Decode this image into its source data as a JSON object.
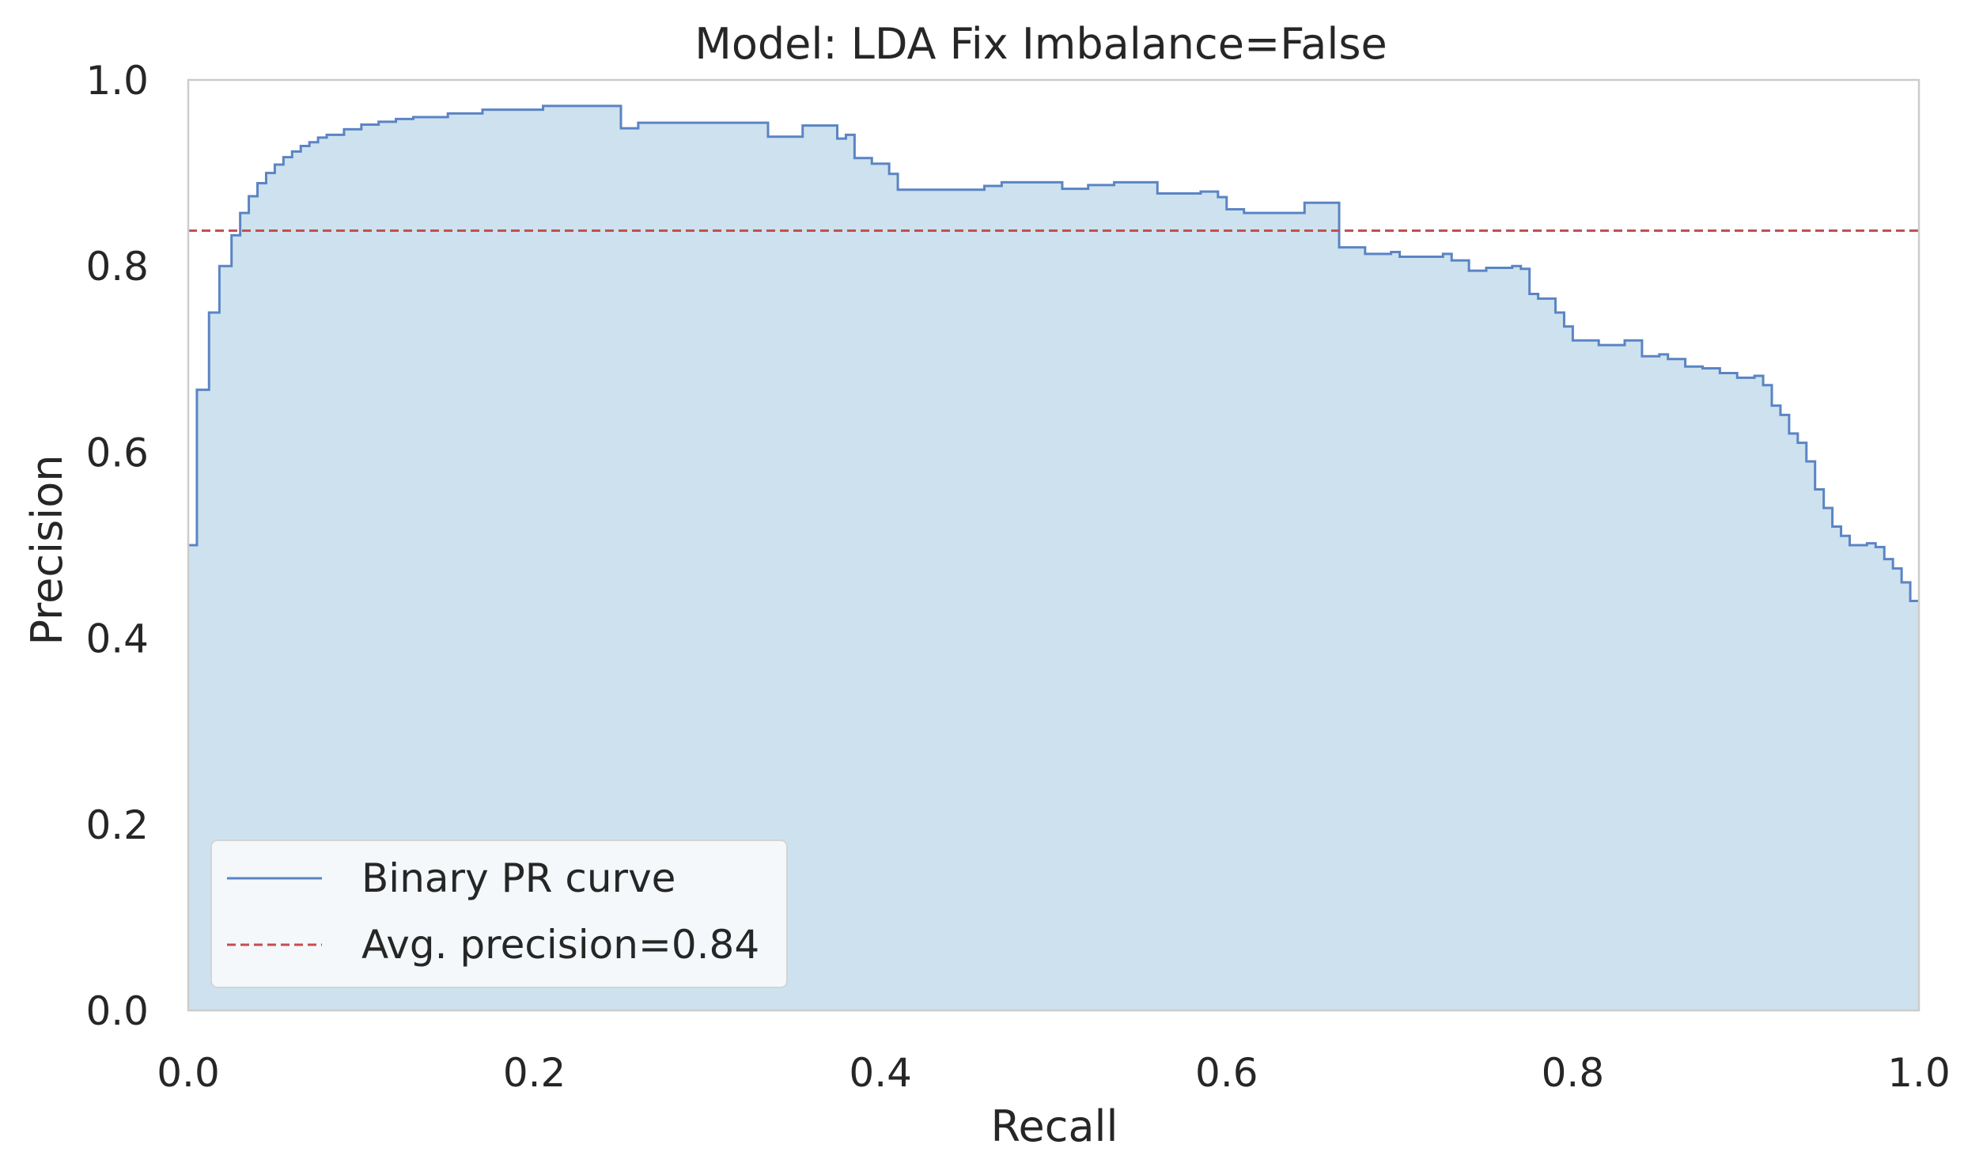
{
  "chart_data": {
    "type": "area",
    "title": "Model: LDA     Fix Imbalance=False",
    "xlabel": "Recall",
    "ylabel": "Precision",
    "xlim": [
      0.0,
      1.0
    ],
    "ylim": [
      0.0,
      1.0
    ],
    "xticks": [
      "0.0",
      "0.2",
      "0.4",
      "0.6",
      "0.8",
      "1.0"
    ],
    "yticks": [
      "0.0",
      "0.2",
      "0.4",
      "0.6",
      "0.8",
      "1.0"
    ],
    "grid": false,
    "legend_position": "lower-left",
    "colors": {
      "curve": "#5b84c4",
      "fill": "#cde2ee",
      "avg_line": "#c44e52",
      "spine": "#cccccc"
    },
    "series": [
      {
        "name": "Binary PR curve",
        "style": "step",
        "x": [
          0.0,
          0.005,
          0.012,
          0.018,
          0.025,
          0.03,
          0.035,
          0.04,
          0.045,
          0.05,
          0.055,
          0.06,
          0.065,
          0.07,
          0.075,
          0.08,
          0.09,
          0.1,
          0.11,
          0.12,
          0.13,
          0.15,
          0.17,
          0.205,
          0.25,
          0.26,
          0.335,
          0.355,
          0.375,
          0.38,
          0.385,
          0.395,
          0.405,
          0.41,
          0.46,
          0.47,
          0.505,
          0.52,
          0.535,
          0.56,
          0.585,
          0.595,
          0.6,
          0.61,
          0.645,
          0.665,
          0.68,
          0.695,
          0.7,
          0.725,
          0.73,
          0.74,
          0.75,
          0.765,
          0.77,
          0.775,
          0.78,
          0.79,
          0.795,
          0.8,
          0.815,
          0.83,
          0.84,
          0.85,
          0.855,
          0.865,
          0.875,
          0.885,
          0.895,
          0.905,
          0.91,
          0.915,
          0.92,
          0.925,
          0.93,
          0.935,
          0.94,
          0.945,
          0.95,
          0.955,
          0.96,
          0.97,
          0.975,
          0.98,
          0.985,
          0.99,
          0.995,
          1.0
        ],
        "y": [
          0.5,
          0.667,
          0.75,
          0.8,
          0.833,
          0.857,
          0.875,
          0.889,
          0.9,
          0.909,
          0.917,
          0.923,
          0.929,
          0.933,
          0.938,
          0.941,
          0.947,
          0.952,
          0.955,
          0.958,
          0.96,
          0.964,
          0.968,
          0.972,
          0.948,
          0.954,
          0.939,
          0.951,
          0.937,
          0.941,
          0.916,
          0.91,
          0.899,
          0.882,
          0.886,
          0.89,
          0.883,
          0.887,
          0.89,
          0.878,
          0.88,
          0.874,
          0.861,
          0.857,
          0.868,
          0.82,
          0.813,
          0.815,
          0.81,
          0.813,
          0.806,
          0.795,
          0.798,
          0.8,
          0.797,
          0.77,
          0.765,
          0.75,
          0.735,
          0.72,
          0.715,
          0.72,
          0.703,
          0.705,
          0.7,
          0.692,
          0.69,
          0.685,
          0.68,
          0.682,
          0.672,
          0.65,
          0.64,
          0.62,
          0.61,
          0.59,
          0.56,
          0.54,
          0.52,
          0.51,
          0.5,
          0.502,
          0.498,
          0.485,
          0.475,
          0.46,
          0.44,
          0.44
        ]
      },
      {
        "name": "Avg. precision=0.84",
        "style": "dashed-horizontal",
        "value": 0.838
      }
    ]
  }
}
